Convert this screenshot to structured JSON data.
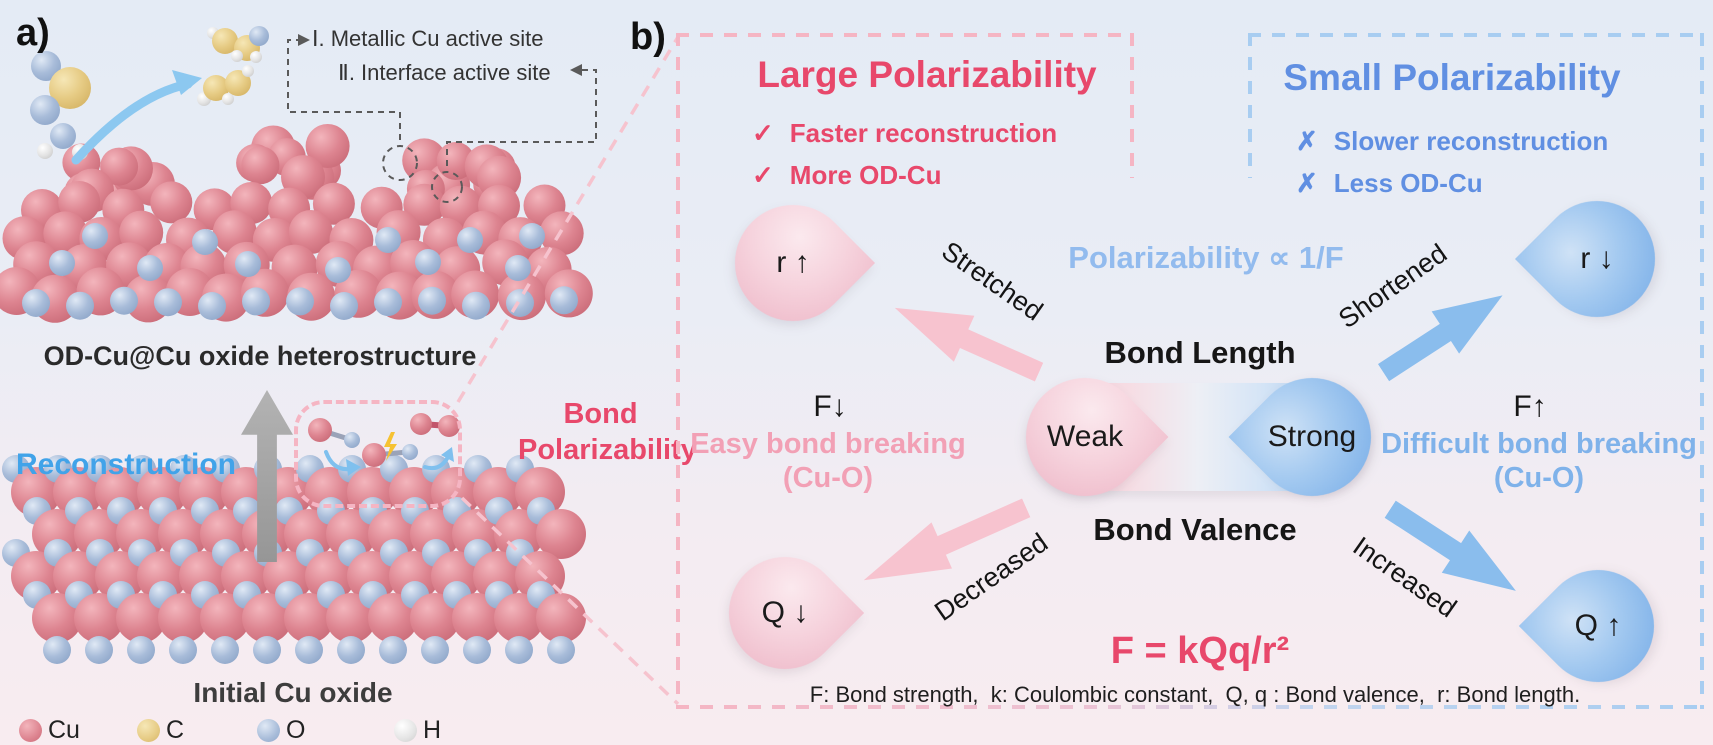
{
  "colors": {
    "accent_pink": "#e8486b",
    "light_pink_text": "#f2a0b5",
    "accent_blue": "#608fe2",
    "light_blue_text": "#7fb2ea",
    "relation_blue": "#92bbee",
    "reconstruction_blue": "#41a3e9",
    "dash_pink": "#f5b5c3",
    "dash_blue": "#a8cdf1",
    "cu_sphere": "#dd8490",
    "c_sphere": "#e6cb84",
    "o_sphere": "#a8bcd9",
    "h_sphere": "#e2e2e2"
  },
  "panel_a": {
    "label": "a)",
    "annotation_1": "Ⅰ. Metallic Cu active site",
    "annotation_2": "Ⅱ. Interface active site",
    "top_caption": "OD-Cu@Cu oxide heterostructure",
    "reconstruction": "Reconstruction",
    "bottom_caption": "Initial Cu oxide",
    "legend": [
      {
        "label": "Cu"
      },
      {
        "label": "C"
      },
      {
        "label": "O"
      },
      {
        "label": "H"
      }
    ]
  },
  "between": {
    "bond_polarizability": "Bond Polarizability"
  },
  "panel_b": {
    "label": "b)",
    "large_box": {
      "title": "Large Polarizability",
      "items": [
        {
          "mark": "✓",
          "text": "Faster reconstruction"
        },
        {
          "mark": "✓",
          "text": "More OD-Cu"
        }
      ]
    },
    "small_box": {
      "title": "Small Polarizability",
      "items": [
        {
          "mark": "✗",
          "text": "Slower reconstruction"
        },
        {
          "mark": "✗",
          "text": "Less OD-Cu"
        }
      ]
    },
    "relation": "Polarizability ∝ 1/F",
    "bond_length": "Bond Length",
    "bond_valence": "Bond Valence",
    "weak": "Weak",
    "strong": "Strong",
    "tear_r_up": "r ↑",
    "tear_r_down": "r ↓",
    "tear_q_down": "Q ↓",
    "tear_q_up": "Q ↑",
    "stretched": "Stretched",
    "shortened": "Shortened",
    "decreased": "Decreased",
    "increased": "Increased",
    "f_down": "F↓",
    "f_up": "F↑",
    "easy_1": "Easy bond breaking",
    "easy_2": "(Cu-O)",
    "difficult_1": "Difficult bond breaking",
    "difficult_2": "(Cu-O)",
    "formula": "F = kQq/r²",
    "footnote": "F: Bond strength,  k: Coulombic constant,  Q, q : Bond valence,  r: Bond length."
  }
}
